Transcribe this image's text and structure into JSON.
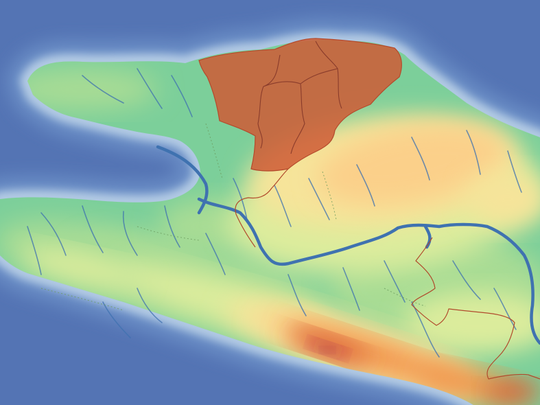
{
  "map": {
    "kind": "terrain-elevation",
    "labels": [],
    "colors": {
      "ocean_deep": "#5474b4",
      "ocean_mid": "#6b8ec6",
      "ocean_shallow": "#8fb0d8",
      "shore_glow": "#b3cbe4",
      "lowland": "#7ccf9a",
      "plain": "#a8dc94",
      "hills": "#dcec9c",
      "upland": "#f6e49a",
      "plateau": "#fbd08a",
      "mountain": "#f0934a",
      "high_mountain": "#d85a36",
      "peak": "#a6214a",
      "summit": "#7a1640",
      "river": "#3f72b0",
      "border": "#b14a2c",
      "highlight_region": "#cf5a35"
    },
    "highlighted_region": {
      "selected": true
    }
  }
}
